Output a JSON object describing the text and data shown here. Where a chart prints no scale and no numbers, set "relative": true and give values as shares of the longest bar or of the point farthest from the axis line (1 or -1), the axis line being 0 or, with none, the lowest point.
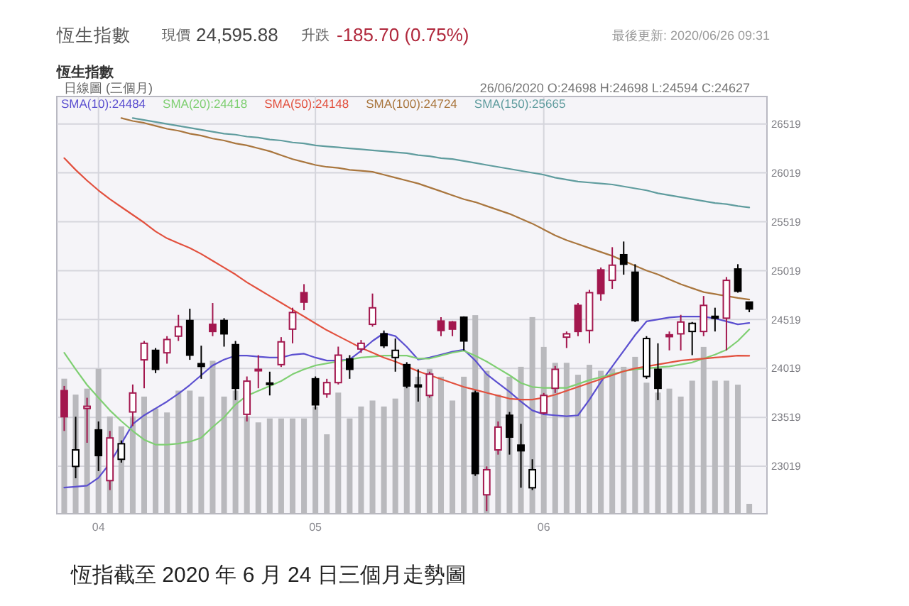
{
  "chart_data": [
    {
      "type": "candlestick",
      "title": "恆生指數",
      "annotations": [
        "現價",
        "24,595.88",
        "升跌",
        "-185.70 (0.75%)",
        "最後更新: 2020/06/26 09:31",
        "恆生指數",
        "日線圖 (三個月)",
        "26/06/2020 O:24698 H:24698 L:24594 C:24627",
        "恆指截至 2020 年 6 月 24 日三個月走勢圖"
      ],
      "categories": [
        null,
        null,
        null,
        "04",
        null,
        null,
        null,
        null,
        null,
        null,
        null,
        null,
        null,
        null,
        null,
        null,
        null,
        null,
        null,
        null,
        null,
        null,
        "05",
        null,
        null,
        null,
        null,
        null,
        null,
        null,
        null,
        null,
        null,
        null,
        null,
        null,
        null,
        null,
        null,
        null,
        null,
        null,
        "06",
        null,
        null,
        null,
        null,
        null,
        null,
        null,
        null,
        null,
        null,
        null,
        null,
        null,
        null,
        null,
        null,
        null,
        null
      ],
      "ohlc": [
        [
          23792,
          23840,
          23380,
          23525
        ],
        [
          23017,
          23525,
          22896,
          23186
        ],
        [
          23610,
          23719,
          23259,
          23632
        ],
        [
          23390,
          23477,
          22969,
          23128
        ],
        [
          22872,
          23380,
          22775,
          23308
        ],
        [
          23090,
          23283,
          23056,
          23249
        ],
        [
          23574,
          23855,
          23429,
          23768
        ],
        [
          24107,
          24300,
          23816,
          24276
        ],
        [
          24204,
          24228,
          23971,
          24010
        ],
        [
          24179,
          24349,
          24068,
          24315
        ],
        [
          24349,
          24567,
          24300,
          24446
        ],
        [
          24509,
          24630,
          24107,
          24155
        ],
        [
          24068,
          24252,
          23913,
          24040
        ],
        [
          24470,
          24688,
          24349,
          24397
        ],
        [
          24509,
          24533,
          24242,
          24373
        ],
        [
          24262,
          24300,
          23695,
          23816
        ],
        [
          23550,
          23937,
          23477,
          23889
        ],
        [
          23995,
          24155,
          23816,
          24010
        ],
        [
          23870,
          23986,
          23743,
          23855
        ],
        [
          24058,
          24339,
          24034,
          24291
        ],
        [
          24421,
          24640,
          24276,
          24591
        ],
        [
          24794,
          24881,
          24615,
          24697
        ],
        [
          23913,
          23937,
          23598,
          23647
        ],
        [
          23758,
          23913,
          23719,
          23874
        ],
        [
          23874,
          24242,
          23855,
          24155
        ],
        [
          24116,
          24155,
          23913,
          24010
        ],
        [
          24218,
          24310,
          24179,
          24276
        ],
        [
          24470,
          24785,
          24446,
          24639
        ],
        [
          24373,
          24407,
          24228,
          24252
        ],
        [
          24131,
          24325,
          23986,
          24204
        ],
        [
          24058,
          24083,
          23816,
          23840
        ],
        [
          23850,
          24010,
          23680,
          23830
        ],
        [
          23743,
          23986,
          23719,
          23961
        ],
        [
          24504,
          24543,
          24349,
          24407
        ],
        [
          24494,
          24504,
          24349,
          24421
        ],
        [
          24543,
          24552,
          24204,
          24300
        ],
        [
          23768,
          23792,
          22920,
          22944
        ],
        [
          22727,
          23017,
          22560,
          22983
        ],
        [
          23186,
          23477,
          23138,
          23419
        ],
        [
          23540,
          23574,
          23138,
          23317
        ],
        [
          23235,
          23453,
          22799,
          23177
        ],
        [
          22799,
          23090,
          22775,
          22983
        ],
        [
          23564,
          23768,
          23550,
          23743
        ],
        [
          23816,
          24044,
          23768,
          24010
        ],
        [
          24339,
          24397,
          24228,
          24373
        ],
        [
          24664,
          24688,
          24349,
          24397
        ],
        [
          24407,
          24823,
          24276,
          24794
        ],
        [
          25027,
          25051,
          24712,
          24785
        ],
        [
          24920,
          25259,
          24833,
          25075
        ],
        [
          25182,
          25317,
          24978,
          25085
        ],
        [
          25003,
          25085,
          24494,
          24509
        ],
        [
          23937,
          24349,
          23913,
          24325
        ],
        [
          24010,
          24276,
          23695,
          23816
        ],
        [
          24363,
          24397,
          24204,
          24344
        ],
        [
          24373,
          24567,
          24204,
          24494
        ],
        [
          24397,
          24494,
          24155,
          24480
        ],
        [
          24397,
          24760,
          24349,
          24664
        ],
        [
          24552,
          24640,
          24397,
          24533
        ],
        [
          24533,
          24954,
          24204,
          24920
        ],
        [
          25036,
          25085,
          24794,
          24809
        ],
        [
          24698,
          24698,
          24594,
          24627
        ]
      ],
      "colors": [
        "#a3174e",
        "#000000",
        "#a3174e",
        "#000000",
        "#a3174e",
        "#000000",
        "#a3174e",
        "#a3174e",
        "#000000",
        "#a3174e",
        "#a3174e",
        "#000000",
        "#000000",
        "#a3174e",
        "#000000",
        "#000000",
        "#a3174e",
        "#a3174e",
        "#000000",
        "#a3174e",
        "#a3174e",
        "#a3174e",
        "#000000",
        "#a3174e",
        "#a3174e",
        "#000000",
        "#a3174e",
        "#a3174e",
        "#000000",
        "#000000",
        "#000000",
        "#000000",
        "#a3174e",
        "#a3174e",
        "#a3174e",
        "#000000",
        "#000000",
        "#a3174e",
        "#a3174e",
        "#000000",
        "#000000",
        "#000000",
        "#a3174e",
        "#a3174e",
        "#a3174e",
        "#a3174e",
        "#a3174e",
        "#a3174e",
        "#a3174e",
        "#000000",
        "#000000",
        "#000000",
        "#000000",
        "#a3174e",
        "#a3174e",
        "#000000",
        "#a3174e",
        "#000000",
        "#a3174e",
        "#000000",
        "#000000"
      ],
      "series": [
        {
          "type": "line",
          "name": "SMA(10):24484",
          "color": "#5b4fd0",
          "values": [
            22800,
            22810,
            22820,
            22900,
            23050,
            23250,
            23450,
            23540,
            23610,
            23680,
            23760,
            23850,
            23950,
            24050,
            24110,
            24150,
            24150,
            24140,
            24130,
            24130,
            24160,
            24170,
            24130,
            24100,
            24100,
            24110,
            24200,
            24300,
            24380,
            24350,
            24240,
            24110,
            24130,
            24160,
            24190,
            24210,
            24100,
            23960,
            23870,
            23780,
            23680,
            23590,
            23550,
            23540,
            23530,
            23540,
            23700,
            23880,
            24040,
            24200,
            24360,
            24500,
            24520,
            24540,
            24550,
            24550,
            24550,
            24530,
            24500,
            24470,
            24484
          ]
        },
        {
          "type": "line",
          "name": "SMA(20):24418",
          "color": "#7fcf72",
          "values": [
            24180,
            24010,
            23850,
            23720,
            23590,
            23480,
            23380,
            23290,
            23240,
            23240,
            23250,
            23270,
            23310,
            23420,
            23520,
            23650,
            23740,
            23790,
            23840,
            23890,
            23960,
            24010,
            24050,
            24070,
            24090,
            24110,
            24130,
            24140,
            24150,
            24150,
            24150,
            24120,
            24120,
            24150,
            24180,
            24200,
            24150,
            24090,
            24020,
            23950,
            23870,
            23830,
            23820,
            23820,
            23820,
            23860,
            23900,
            23930,
            23960,
            23990,
            24010,
            24020,
            24030,
            24040,
            24060,
            24080,
            24120,
            24160,
            24210,
            24300,
            24418
          ]
        },
        {
          "type": "line",
          "name": "SMA(50):24148",
          "color": "#e2503e",
          "values": [
            26170,
            26050,
            25940,
            25840,
            25750,
            25670,
            25590,
            25510,
            25420,
            25350,
            25300,
            25250,
            25190,
            25120,
            25050,
            24980,
            24900,
            24830,
            24760,
            24690,
            24620,
            24550,
            24480,
            24410,
            24350,
            24290,
            24230,
            24180,
            24130,
            24090,
            24040,
            23990,
            23950,
            23910,
            23870,
            23830,
            23800,
            23770,
            23740,
            23710,
            23700,
            23700,
            23720,
            23750,
            23790,
            23830,
            23870,
            23910,
            23950,
            23990,
            24020,
            24040,
            24060,
            24080,
            24100,
            24110,
            24120,
            24130,
            24140,
            24150,
            24148
          ]
        },
        {
          "type": "line",
          "name": "SMA(100):24724",
          "color": "#a9763e",
          "values": [
            null,
            null,
            null,
            null,
            null,
            26580,
            26550,
            26530,
            26500,
            26470,
            26450,
            26420,
            26400,
            26370,
            26350,
            26320,
            26300,
            26270,
            26240,
            26200,
            26160,
            26130,
            26100,
            26080,
            26070,
            26050,
            26040,
            26030,
            26000,
            25970,
            25940,
            25910,
            25870,
            25830,
            25790,
            25750,
            25720,
            25680,
            25640,
            25600,
            25550,
            25500,
            25440,
            25380,
            25330,
            25290,
            25250,
            25210,
            25170,
            25120,
            25070,
            25020,
            24980,
            24930,
            24880,
            24840,
            24800,
            24780,
            24760,
            24740,
            24724
          ]
        },
        {
          "type": "line",
          "name": "SMA(150):25665",
          "color": "#5f9c9e",
          "values": [
            null,
            null,
            null,
            null,
            null,
            null,
            26580,
            26560,
            26540,
            26520,
            26500,
            26480,
            26460,
            26440,
            26420,
            26410,
            26390,
            26380,
            26360,
            26350,
            26330,
            26320,
            26300,
            26290,
            26280,
            26270,
            26260,
            26250,
            26240,
            26230,
            26220,
            26200,
            26190,
            26170,
            26160,
            26140,
            26120,
            26100,
            26080,
            26060,
            26040,
            26020,
            26000,
            25970,
            25950,
            25930,
            25920,
            25910,
            25900,
            25880,
            25860,
            25840,
            25810,
            25790,
            25770,
            25750,
            25730,
            25710,
            25700,
            25680,
            25665
          ]
        }
      ],
      "ylim": [
        22533,
        26800
      ],
      "yticks": [
        23019,
        23519,
        24019,
        24519,
        25019,
        25519,
        26019,
        26519
      ],
      "grid": true,
      "legend": "top left"
    },
    {
      "type": "bar",
      "relative": true,
      "color": "#b9b9bd",
      "categories": [
        null,
        null,
        null,
        null,
        null,
        null,
        null,
        null,
        null,
        null,
        null,
        null,
        null,
        null,
        null,
        null,
        null,
        null,
        null,
        null,
        null,
        null,
        null,
        null,
        null,
        null,
        null,
        null,
        null,
        null,
        null,
        null,
        null,
        null,
        null,
        null,
        null,
        null,
        null,
        null,
        null,
        null,
        null,
        null,
        null,
        null,
        null,
        null,
        null,
        null,
        null,
        null,
        null,
        null,
        null,
        null,
        null,
        null,
        null,
        null,
        null
      ],
      "values": [
        0.68,
        0.6,
        0.63,
        0.73,
        0.49,
        0.44,
        0.49,
        0.59,
        0.53,
        0.51,
        0.62,
        0.62,
        0.59,
        0.77,
        0.59,
        0.62,
        0.49,
        0.46,
        0.48,
        0.48,
        0.48,
        0.48,
        0.54,
        0.4,
        0.61,
        0.48,
        0.54,
        0.57,
        0.54,
        0.58,
        0.65,
        0.69,
        0.73,
        0.69,
        0.57,
        0.69,
        1,
        0.72,
        0.6,
        0.69,
        0.74,
        0.99,
        0.84,
        0.76,
        0.76,
        0.7,
        0.75,
        0.72,
        0.73,
        0.74,
        0.79,
        0.66,
        0.61,
        0.63,
        0.59,
        0.67,
        0.84,
        0.67,
        0.67,
        0.65,
        0.05
      ]
    }
  ]
}
